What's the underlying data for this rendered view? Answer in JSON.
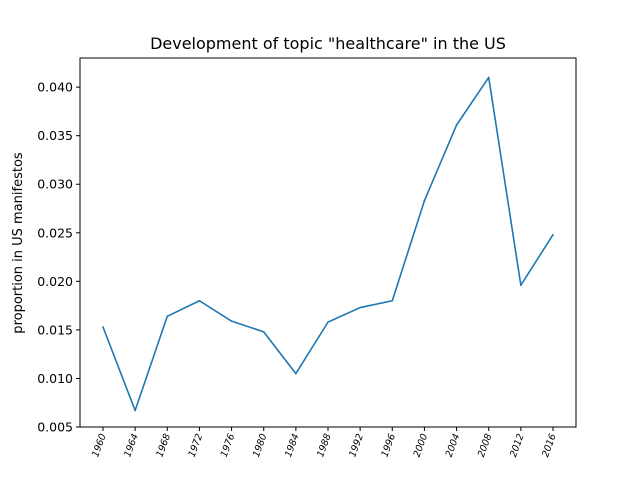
{
  "chart_data": {
    "type": "line",
    "title": "Development of topic \"healthcare\" in the US",
    "xlabel": "",
    "ylabel": "proportion in US manifestos",
    "x": [
      "1960",
      "1964",
      "1968",
      "1972",
      "1976",
      "1980",
      "1984",
      "1988",
      "1992",
      "1996",
      "2000",
      "2004",
      "2008",
      "2012",
      "2016"
    ],
    "series": [
      {
        "values": [
          0.0153,
          0.0067,
          0.0164,
          0.018,
          0.0159,
          0.0148,
          0.0105,
          0.0158,
          0.0173,
          0.018,
          0.0283,
          0.0361,
          0.041,
          0.0196,
          0.0248
        ],
        "color": "#1f77b4"
      }
    ],
    "ylim": [
      0.005,
      0.043
    ],
    "yticks": [
      "0.005",
      "0.010",
      "0.015",
      "0.020",
      "0.025",
      "0.030",
      "0.035",
      "0.040"
    ],
    "grid": false,
    "legend": "none"
  }
}
